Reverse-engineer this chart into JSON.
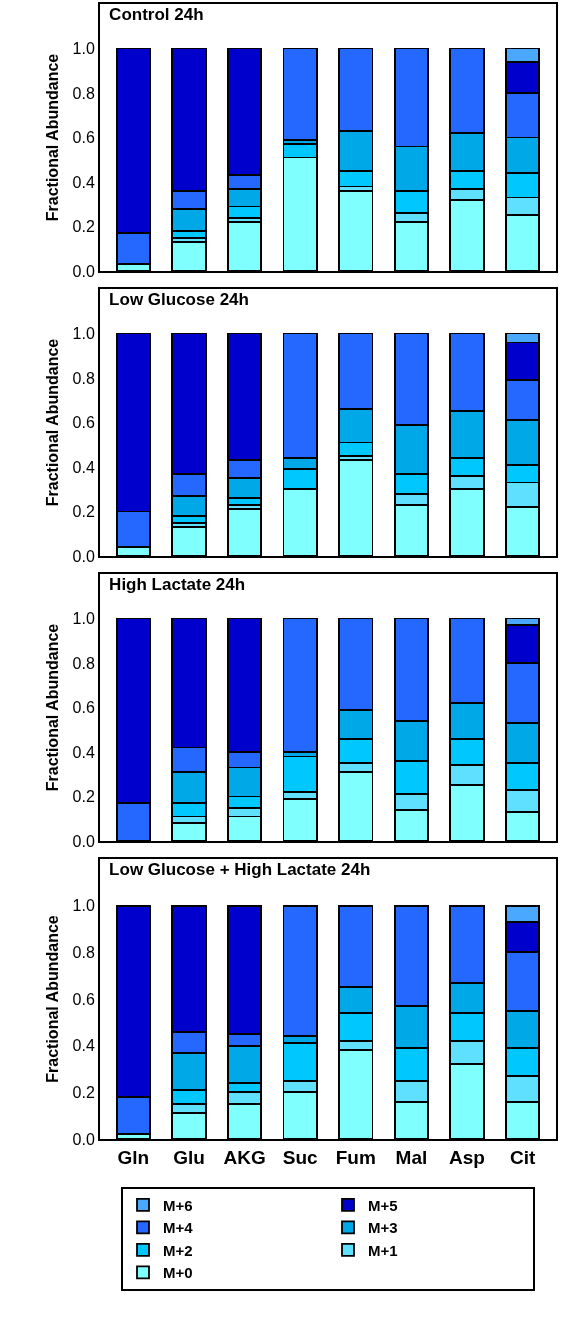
{
  "chart_data": [
    {
      "type": "bar",
      "title": "Control 24h",
      "ylabel": "Fractional Abundance",
      "categories": [
        null,
        null,
        null,
        null,
        null,
        null,
        null,
        null
      ],
      "stacked": true,
      "ylim": [
        0,
        1.2
      ],
      "yticks": [
        {
          "value": 0,
          "label": "0.0"
        },
        {
          "value": 0.2,
          "label": "0.2"
        },
        {
          "value": 0.4,
          "label": "0.4"
        },
        {
          "value": 0.6,
          "label": "0.6"
        },
        {
          "value": 0.8,
          "label": "0.8"
        },
        {
          "value": 1,
          "label": "1.0"
        }
      ],
      "tick_labels": "y",
      "grid": false,
      "legend": false,
      "series": [
        {
          "color": "#80ffff",
          "values": [
            0.03,
            0.13,
            0.22,
            0.51,
            0.36,
            0.22,
            0.32,
            0.25
          ]
        },
        {
          "color": "#60e0ff",
          "values": [
            null,
            0.02,
            0.02,
            null,
            0.02,
            0.04,
            0.05,
            0.08
          ]
        },
        {
          "color": "#00c8ff",
          "values": [
            null,
            0.03,
            0.05,
            0.06,
            0.07,
            0.1,
            0.08,
            0.11
          ]
        },
        {
          "color": "#00a8e8",
          "values": [
            null,
            0.1,
            0.08,
            0.02,
            0.18,
            0.2,
            0.17,
            0.16
          ]
        },
        {
          "color": "#2468ff",
          "values": [
            0.14,
            0.08,
            0.06,
            0.41,
            0.37,
            0.44,
            0.38,
            0.2
          ]
        },
        {
          "color": "#0000cc",
          "values": [
            0.83,
            0.64,
            0.57,
            null,
            null,
            null,
            null,
            0.14
          ]
        },
        {
          "color": "#4aa8ff",
          "values": [
            null,
            null,
            null,
            null,
            null,
            null,
            null,
            0.06
          ]
        }
      ]
    },
    {
      "type": "bar",
      "title": "Low Glucose 24h",
      "ylabel": "Fractional Abundance",
      "categories": [
        null,
        null,
        null,
        null,
        null,
        null,
        null,
        null
      ],
      "stacked": true,
      "ylim": [
        0,
        1.2
      ],
      "yticks": [
        {
          "value": 0,
          "label": "0.0"
        },
        {
          "value": 0.2,
          "label": "0.2"
        },
        {
          "value": 0.4,
          "label": "0.4"
        },
        {
          "value": 0.6,
          "label": "0.6"
        },
        {
          "value": 0.8,
          "label": "0.8"
        },
        {
          "value": 1,
          "label": "1.0"
        }
      ],
      "tick_labels": "y",
      "grid": false,
      "legend": false,
      "series": [
        {
          "color": "#80ffff",
          "values": [
            0.04,
            0.13,
            0.21,
            0.3,
            0.43,
            0.23,
            0.3,
            0.22
          ]
        },
        {
          "color": "#60e0ff",
          "values": [
            null,
            0.02,
            0.02,
            null,
            0.02,
            0.05,
            0.06,
            0.11
          ]
        },
        {
          "color": "#00c8ff",
          "values": [
            null,
            0.03,
            0.03,
            0.09,
            0.06,
            0.09,
            0.08,
            0.08
          ]
        },
        {
          "color": "#00a8e8",
          "values": [
            null,
            0.09,
            0.09,
            0.05,
            0.15,
            0.22,
            0.21,
            0.2
          ]
        },
        {
          "color": "#2468ff",
          "values": [
            0.16,
            0.1,
            0.08,
            0.56,
            0.34,
            0.41,
            0.35,
            0.18
          ]
        },
        {
          "color": "#0000cc",
          "values": [
            0.8,
            0.63,
            0.57,
            null,
            null,
            null,
            null,
            0.17
          ]
        },
        {
          "color": "#4aa8ff",
          "values": [
            null,
            null,
            null,
            null,
            null,
            null,
            null,
            0.04
          ]
        }
      ]
    },
    {
      "type": "bar",
      "title": "High Lactate 24h",
      "ylabel": "Fractional Abundance",
      "categories": [
        null,
        null,
        null,
        null,
        null,
        null,
        null,
        null
      ],
      "stacked": true,
      "ylim": [
        0,
        1.2
      ],
      "yticks": [
        {
          "value": 0,
          "label": "0.0"
        },
        {
          "value": 0.2,
          "label": "0.2"
        },
        {
          "value": 0.4,
          "label": "0.4"
        },
        {
          "value": 0.6,
          "label": "0.6"
        },
        {
          "value": 0.8,
          "label": "0.8"
        },
        {
          "value": 1,
          "label": "1.0"
        }
      ],
      "tick_labels": "y",
      "grid": false,
      "legend": false,
      "series": [
        {
          "color": "#80ffff",
          "values": [
            null,
            0.08,
            0.11,
            0.19,
            0.31,
            0.14,
            0.25,
            0.13
          ]
        },
        {
          "color": "#60e0ff",
          "values": [
            null,
            0.03,
            0.04,
            0.03,
            0.04,
            0.07,
            0.09,
            0.1
          ]
        },
        {
          "color": "#00c8ff",
          "values": [
            null,
            0.06,
            0.05,
            0.16,
            0.11,
            0.15,
            0.12,
            0.12
          ]
        },
        {
          "color": "#00a8e8",
          "values": [
            null,
            0.14,
            0.13,
            0.02,
            0.13,
            0.18,
            0.16,
            0.18
          ]
        },
        {
          "color": "#2468ff",
          "values": [
            0.17,
            0.11,
            0.07,
            0.6,
            0.41,
            0.46,
            0.38,
            0.27
          ]
        },
        {
          "color": "#0000cc",
          "values": [
            0.83,
            0.58,
            0.6,
            null,
            null,
            null,
            null,
            0.17
          ]
        },
        {
          "color": "#4aa8ff",
          "values": [
            null,
            null,
            null,
            null,
            null,
            null,
            null,
            0.03
          ]
        }
      ]
    },
    {
      "type": "bar",
      "title": "Low Glucose + High Lactate 24h",
      "ylabel": "Fractional Abundance",
      "categories": [
        "Gln",
        "Glu",
        "AKG",
        "Suc",
        "Fum",
        "Mal",
        "Asp",
        "Cit"
      ],
      "stacked": true,
      "ylim": [
        0,
        1.2
      ],
      "yticks": [
        {
          "value": 0,
          "label": "0.0"
        },
        {
          "value": 0.2,
          "label": "0.2"
        },
        {
          "value": 0.4,
          "label": "0.4"
        },
        {
          "value": 0.6,
          "label": "0.6"
        },
        {
          "value": 0.8,
          "label": "0.8"
        },
        {
          "value": 1,
          "label": "1.0"
        }
      ],
      "grid": false,
      "legend": "bottom",
      "series": [
        {
          "name": "M+0",
          "color": "#80ffff",
          "values": [
            0.02,
            0.11,
            0.15,
            0.2,
            0.38,
            0.16,
            0.32,
            0.16
          ]
        },
        {
          "name": "M+1",
          "color": "#60e0ff",
          "values": [
            null,
            0.04,
            0.05,
            0.05,
            0.04,
            0.09,
            0.1,
            0.11
          ]
        },
        {
          "name": "M+2",
          "color": "#00c8ff",
          "values": [
            null,
            0.06,
            0.04,
            0.16,
            0.12,
            0.14,
            0.12,
            0.12
          ]
        },
        {
          "name": "M+3",
          "color": "#00a8e8",
          "values": [
            null,
            0.16,
            0.16,
            0.03,
            0.11,
            0.18,
            0.13,
            0.16
          ]
        },
        {
          "name": "M+4",
          "color": "#2468ff",
          "values": [
            0.16,
            0.09,
            0.05,
            0.56,
            0.35,
            0.43,
            0.33,
            0.25
          ]
        },
        {
          "name": "M+5",
          "color": "#0000cc",
          "values": [
            0.82,
            0.54,
            0.55,
            null,
            null,
            null,
            null,
            0.13
          ]
        },
        {
          "name": "M+6",
          "color": "#4aa8ff",
          "values": [
            null,
            null,
            null,
            null,
            null,
            null,
            null,
            0.07
          ]
        }
      ]
    }
  ]
}
